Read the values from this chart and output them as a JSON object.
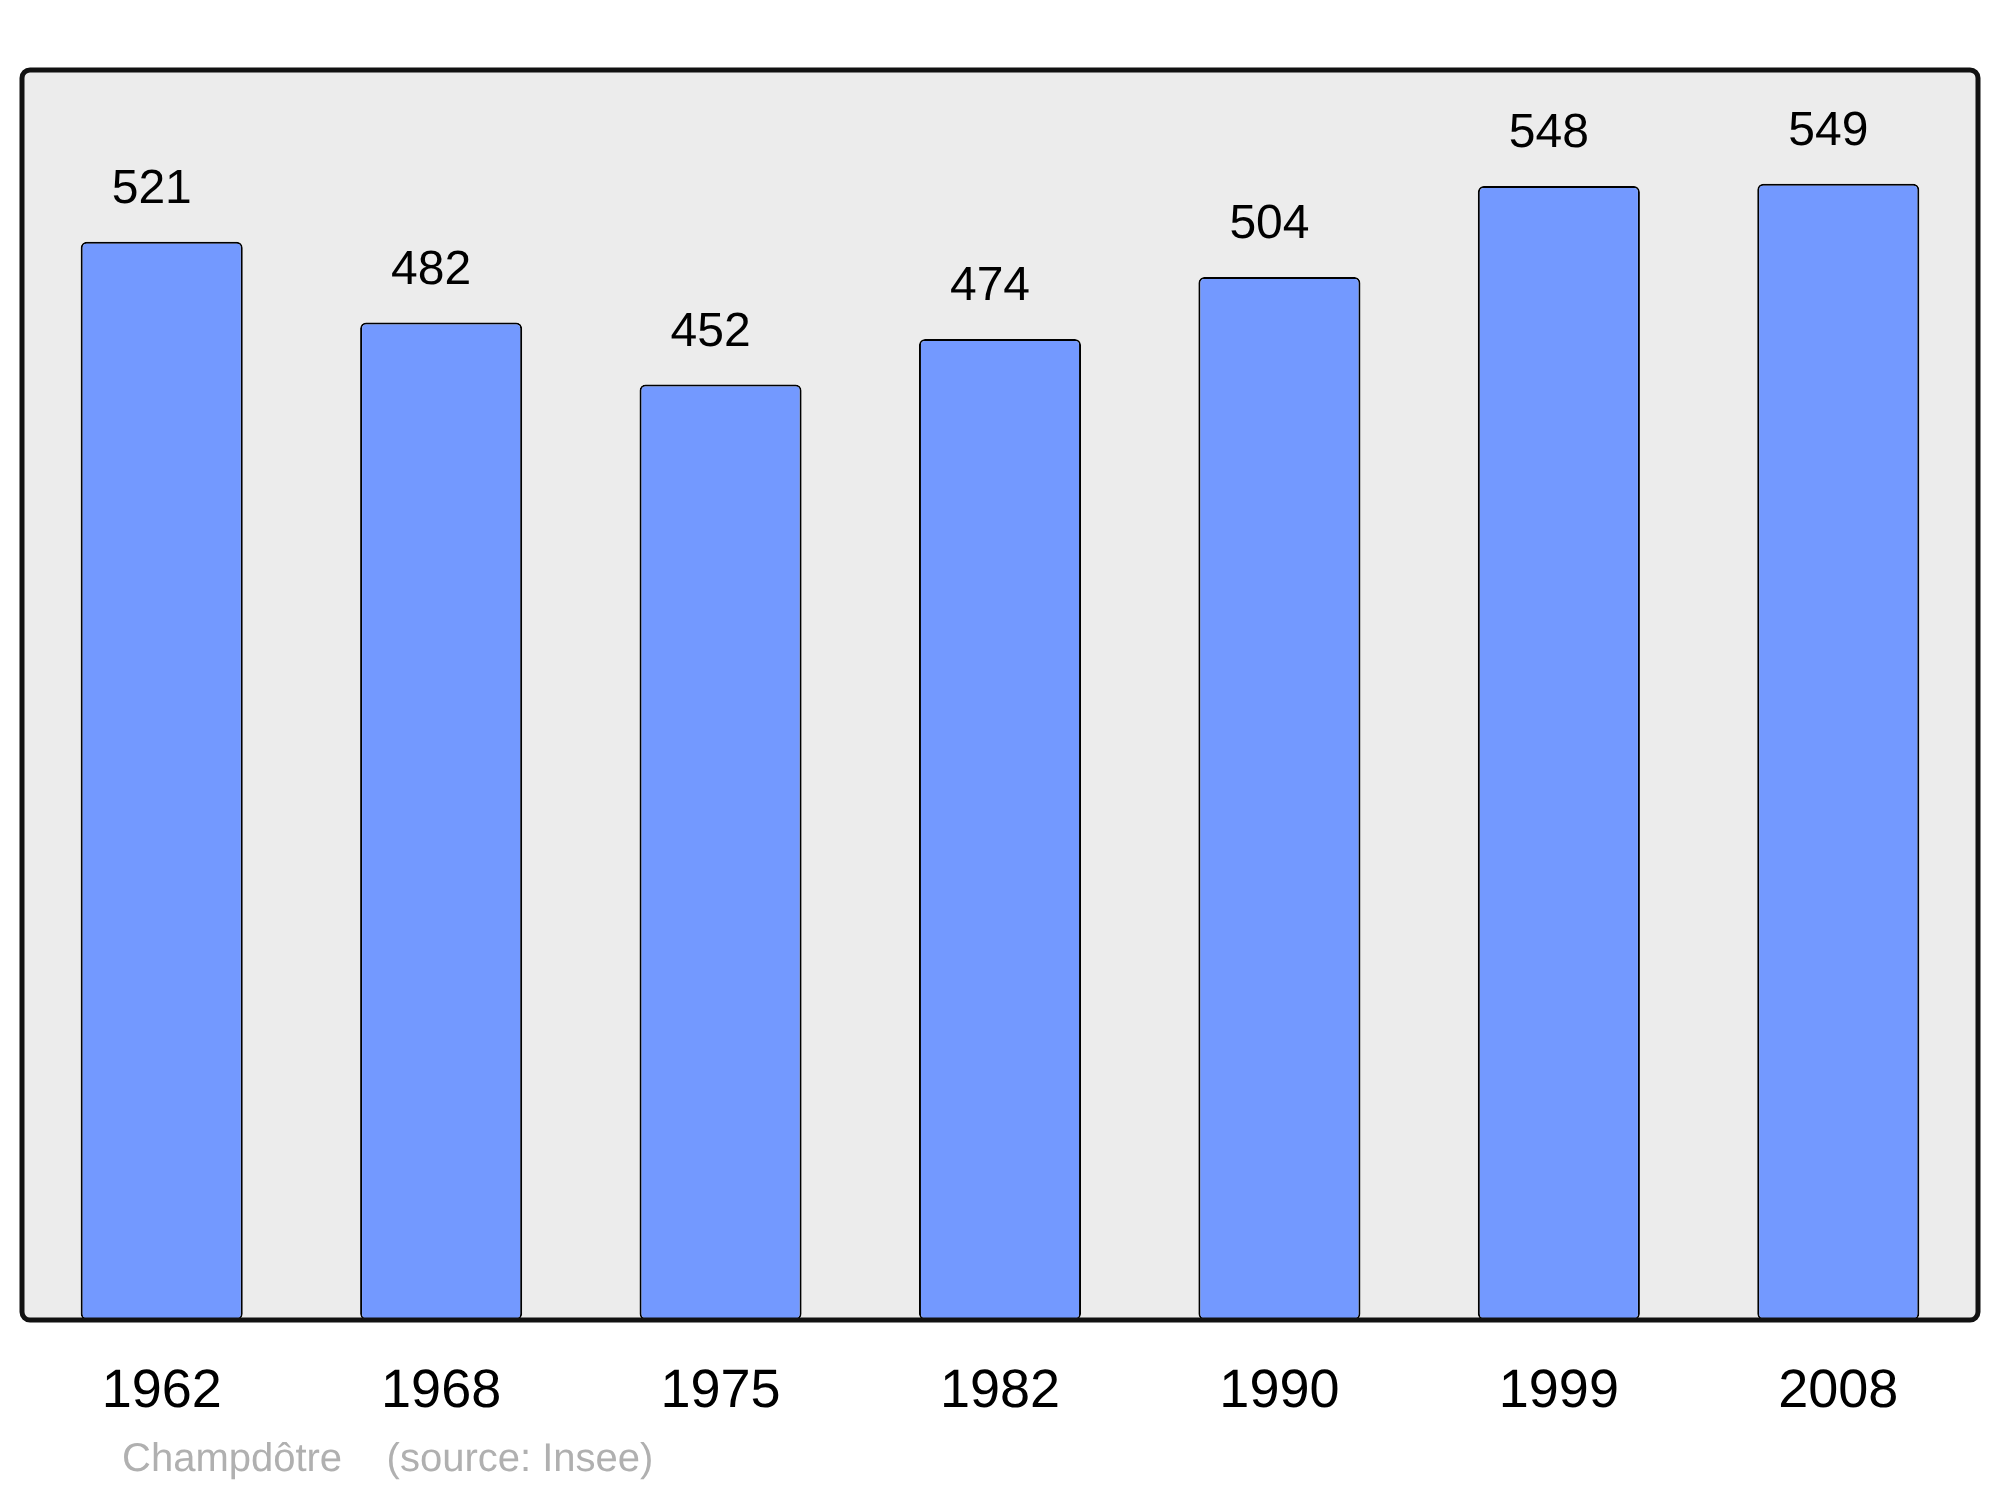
{
  "chart_data": {
    "type": "bar",
    "categories": [
      "1962",
      "1968",
      "1975",
      "1982",
      "1990",
      "1999",
      "2008"
    ],
    "values": [
      521,
      482,
      452,
      474,
      504,
      548,
      549
    ],
    "color": "#7399ff",
    "ylim": [
      0,
      604
    ],
    "tick_labels": "x",
    "grid": false,
    "legend": false,
    "data_labels": true,
    "annotations": [
      "Champdôtre    (source: Insee)"
    ]
  }
}
